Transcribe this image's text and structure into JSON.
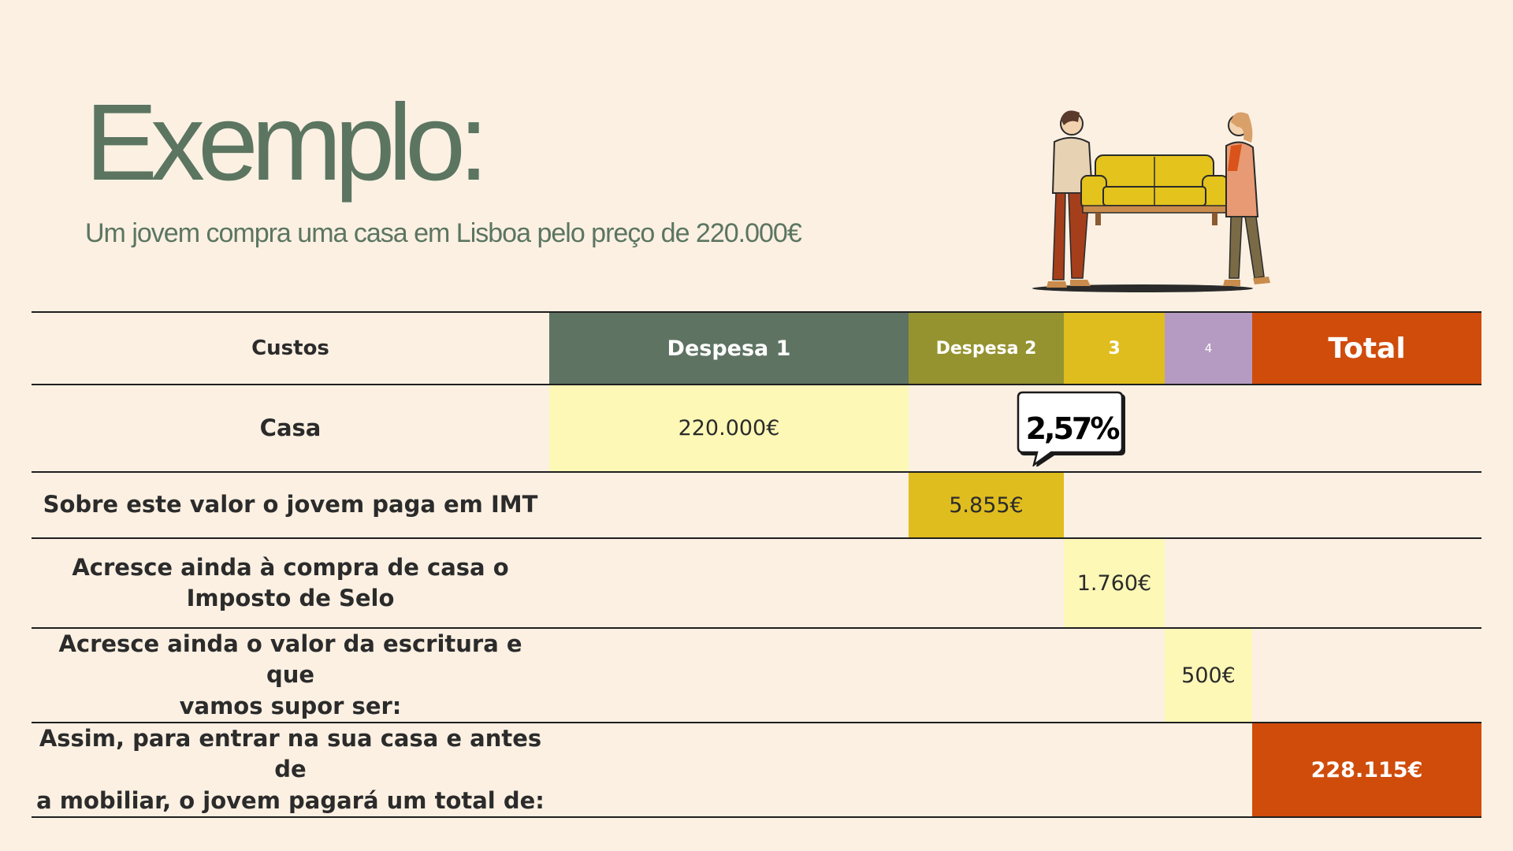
{
  "title": "Exemplo:",
  "subtitle": "Um jovem compra uma casa em Lisboa pelo preço de 220.000€",
  "table": {
    "headers": {
      "custos": "Custos",
      "d1": "Despesa 1",
      "d2": "Despesa 2",
      "d3": "3",
      "d4": "4",
      "total": "Total"
    },
    "rows": [
      {
        "label": "Casa",
        "value": "220.000€"
      },
      {
        "label": "Sobre este valor o jovem paga em IMT",
        "value": "5.855€"
      },
      {
        "label_line1": "Acresce ainda à compra de casa o",
        "label_line2": "Imposto de Selo",
        "value": "1.760€"
      },
      {
        "label_line1": "Acresce ainda o valor da escritura e que",
        "label_line2": "vamos supor ser:",
        "value": "500€"
      },
      {
        "label_line1": "Assim, para entrar na sua casa e antes de",
        "label_line2": "a mobiliar, o jovem pagará um total de:",
        "value": "228.115€"
      }
    ]
  },
  "callout": {
    "text": "2,57%"
  },
  "colors": {
    "background": "#fbf0e2",
    "title": "#5b7561",
    "despesa1": "#5f7363",
    "despesa2": "#959330",
    "despesa3": "#e0bd1e",
    "despesa4": "#b59bc1",
    "total": "#d04c0b",
    "highlight": "#fdf8b6"
  },
  "illustration": {
    "icon": "people-carrying-sofa-illustration"
  }
}
